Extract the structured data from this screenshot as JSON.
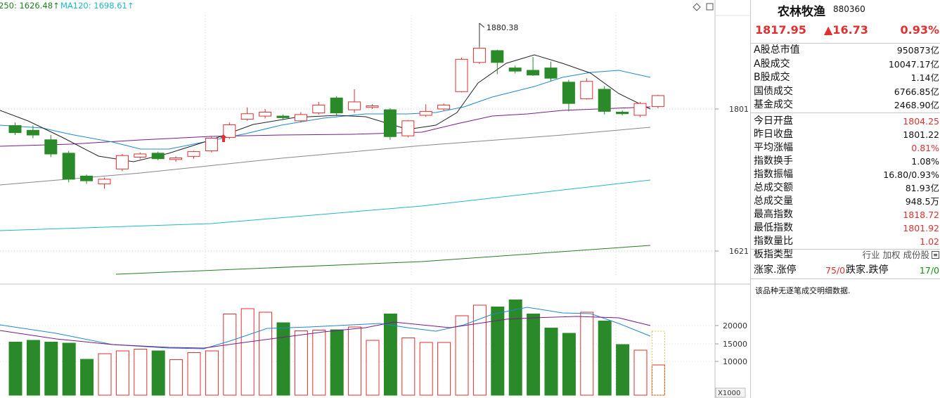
{
  "top_bar": {
    "ma250_label": "250: 1626.48↑",
    "ma120_label": "MA120: 1698.61↑",
    "diamond_icon": "diamond-icon",
    "window_icon": "window-icon"
  },
  "colors": {
    "up": "#e03030",
    "down": "#2a8a2a",
    "ma5": "#222222",
    "ma10": "#1e88d0",
    "ma20": "#7a1a8a",
    "ma60": "#888888",
    "ma120": "#20b8c8",
    "ma250": "#208020",
    "vol_ma5": "#1e88d0",
    "vol_ma10": "#7a1a8a"
  },
  "chart_data": {
    "type": "candlestick",
    "title": "",
    "y_ticks": [
      "1801",
      "1621"
    ],
    "vol_ticks": [
      "20000",
      "15000",
      "10000"
    ],
    "vol_unit": "X1000",
    "max_annotation": "1880.38",
    "candles": [
      {
        "o": 1780,
        "c": 1771,
        "h": 1784,
        "l": 1768
      },
      {
        "o": 1774,
        "c": 1768,
        "h": 1780,
        "l": 1764
      },
      {
        "o": 1762,
        "c": 1744,
        "h": 1768,
        "l": 1740
      },
      {
        "o": 1745,
        "c": 1712,
        "h": 1748,
        "l": 1708
      },
      {
        "o": 1716,
        "c": 1710,
        "h": 1718,
        "l": 1706
      },
      {
        "o": 1706,
        "c": 1712,
        "h": 1714,
        "l": 1700
      },
      {
        "o": 1725,
        "c": 1742,
        "h": 1744,
        "l": 1722
      },
      {
        "o": 1740,
        "c": 1744,
        "h": 1746,
        "l": 1738
      },
      {
        "o": 1745,
        "c": 1738,
        "h": 1747,
        "l": 1736
      },
      {
        "o": 1737,
        "c": 1739,
        "h": 1741,
        "l": 1734
      },
      {
        "o": 1741,
        "c": 1747,
        "h": 1748,
        "l": 1738
      },
      {
        "o": 1748,
        "c": 1764,
        "h": 1766,
        "l": 1746
      },
      {
        "o": 1765,
        "c": 1781,
        "h": 1784,
        "l": 1763
      },
      {
        "o": 1788,
        "c": 1795,
        "h": 1803,
        "l": 1786
      },
      {
        "o": 1792,
        "c": 1797,
        "h": 1801,
        "l": 1789
      },
      {
        "o": 1792,
        "c": 1790,
        "h": 1794,
        "l": 1787
      },
      {
        "o": 1786,
        "c": 1794,
        "h": 1797,
        "l": 1784
      },
      {
        "o": 1796,
        "c": 1806,
        "h": 1810,
        "l": 1794
      },
      {
        "o": 1815,
        "c": 1796,
        "h": 1817,
        "l": 1792
      },
      {
        "o": 1800,
        "c": 1810,
        "h": 1826,
        "l": 1796
      },
      {
        "o": 1803,
        "c": 1805,
        "h": 1807,
        "l": 1801
      },
      {
        "o": 1800,
        "c": 1766,
        "h": 1802,
        "l": 1762
      },
      {
        "o": 1767,
        "c": 1786,
        "h": 1787,
        "l": 1765
      },
      {
        "o": 1793,
        "c": 1798,
        "h": 1807,
        "l": 1791
      },
      {
        "o": 1801,
        "c": 1806,
        "h": 1808,
        "l": 1799
      },
      {
        "o": 1823,
        "c": 1864,
        "h": 1866,
        "l": 1822
      },
      {
        "o": 1860,
        "c": 1878,
        "h": 1880,
        "l": 1858
      },
      {
        "o": 1875,
        "c": 1860,
        "h": 1876,
        "l": 1845
      },
      {
        "o": 1853,
        "c": 1849,
        "h": 1856,
        "l": 1846
      },
      {
        "o": 1850,
        "c": 1844,
        "h": 1867,
        "l": 1843
      },
      {
        "o": 1853,
        "c": 1840,
        "h": 1861,
        "l": 1836
      },
      {
        "o": 1835,
        "c": 1808,
        "h": 1838,
        "l": 1798
      },
      {
        "o": 1814,
        "c": 1836,
        "h": 1840,
        "l": 1813
      },
      {
        "o": 1826,
        "c": 1798,
        "h": 1830,
        "l": 1794
      },
      {
        "o": 1797,
        "c": 1795,
        "h": 1799,
        "l": 1793
      },
      {
        "o": 1793,
        "c": 1808,
        "h": 1810,
        "l": 1791
      },
      {
        "o": 1804,
        "c": 1818,
        "h": 1819,
        "l": 1802
      }
    ],
    "volumes": [
      15500,
      16000,
      15500,
      15200,
      10600,
      12200,
      13000,
      13500,
      13000,
      10500,
      12500,
      13000,
      23500,
      25000,
      24000,
      21000,
      18700,
      18900,
      19000,
      19800,
      16000,
      23500,
      16700,
      15400,
      15400,
      23000,
      26000,
      25500,
      27500,
      23500,
      19500,
      18000,
      24000,
      21500,
      14800,
      13200,
      9000
    ]
  },
  "panel": {
    "name": "农林牧渔",
    "code": "880360",
    "price": "1817.95",
    "change": "▲16.73",
    "pct": "0.93%",
    "rows": [
      {
        "k": "A股总市值",
        "v": "950873亿",
        "c": ""
      },
      {
        "k": "A股成交",
        "v": "10047.17亿",
        "c": ""
      },
      {
        "k": "B股成交",
        "v": "1.14亿",
        "c": ""
      },
      {
        "k": "国债成交",
        "v": "6766.85亿",
        "c": ""
      },
      {
        "k": "基金成交",
        "v": "2468.90亿",
        "c": ""
      },
      {
        "k": "今日开盘",
        "v": "1804.25",
        "c": "red"
      },
      {
        "k": "昨日收盘",
        "v": "1801.22",
        "c": ""
      },
      {
        "k": "平均涨幅",
        "v": "0.81%",
        "c": "red"
      },
      {
        "k": "指数换手",
        "v": "1.08%",
        "c": ""
      },
      {
        "k": "指数振幅",
        "v": "16.80/0.93%",
        "c": ""
      },
      {
        "k": "总成交额",
        "v": "81.93亿",
        "c": ""
      },
      {
        "k": "总成交量",
        "v": "948.5万",
        "c": ""
      },
      {
        "k": "最高指数",
        "v": "1818.72",
        "c": "red"
      },
      {
        "k": "最低指数",
        "v": "1801.92",
        "c": "red"
      },
      {
        "k": "指数量比",
        "v": "1.02",
        "c": "red"
      },
      {
        "k": "板指类型",
        "v": "行业 加权 成份股",
        "c": "grey"
      }
    ],
    "last_row": {
      "k1": "涨家.涨停",
      "v1": "75/0",
      "k2": "跌家.跌停",
      "v2": "17/0"
    },
    "note": "该品种无逐笔成交明细数据."
  }
}
